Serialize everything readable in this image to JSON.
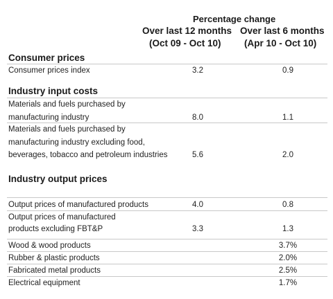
{
  "header": {
    "group": "Percentage change",
    "col1_line1": "Over last 12 months",
    "col1_line2": "(Oct 09 - Oct 10)",
    "col2_line1": "Over last 6 months",
    "col2_line2": "(Apr 10 - Oct 10)"
  },
  "sections": {
    "consumer": "Consumer prices",
    "input": "Industry input costs",
    "output": "Industry output prices"
  },
  "rows": {
    "cpi": {
      "label": "Consumer prices index",
      "v12": "3.2",
      "v6": "0.9"
    },
    "mat1": {
      "label1": "Materials and fuels purchased by",
      "label2": "manufacturing industry",
      "v12": "8.0",
      "v6": "1.1"
    },
    "mat2": {
      "label1": "Materials and fuels purchased by",
      "label2": "manufacturing industry excluding food,",
      "label3": "beverages, tobacco and petroleum industries",
      "v12": "5.6",
      "v6": "2.0"
    },
    "out1": {
      "label": "Output prices of manufactured products",
      "v12": "4.0",
      "v6": "0.8"
    },
    "out2": {
      "label1": "Output prices of manufactured",
      "label2": "products excluding FBT&P",
      "v12": "3.3",
      "v6": "1.3"
    },
    "wood": {
      "label": "Wood & wood products",
      "v6": "3.7%"
    },
    "rubber": {
      "label": "Rubber & plastic products",
      "v6": "2.0%"
    },
    "metal": {
      "label": "Fabricated metal products",
      "v6": "2.5%"
    },
    "elec": {
      "label": "Electrical equipment",
      "v6": "1.7%"
    }
  }
}
